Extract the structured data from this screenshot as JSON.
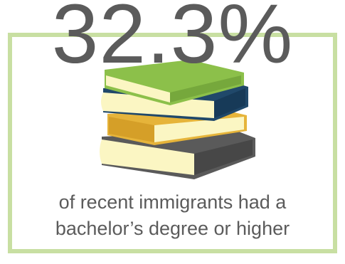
{
  "stat": {
    "value": "32.3%"
  },
  "caption": {
    "line1": "of recent immigrants had a",
    "line2": "bachelor’s degree or higher"
  },
  "books_icon": "stack-of-books-icon",
  "colors": {
    "frame": "#c8dfa2",
    "text": "#5b5b5b",
    "book_green": "#8cc04a",
    "book_navy": "#20486a",
    "book_yellow": "#e6b43a",
    "book_gray": "#5a5a5a",
    "pages": "#fbf6c3"
  }
}
